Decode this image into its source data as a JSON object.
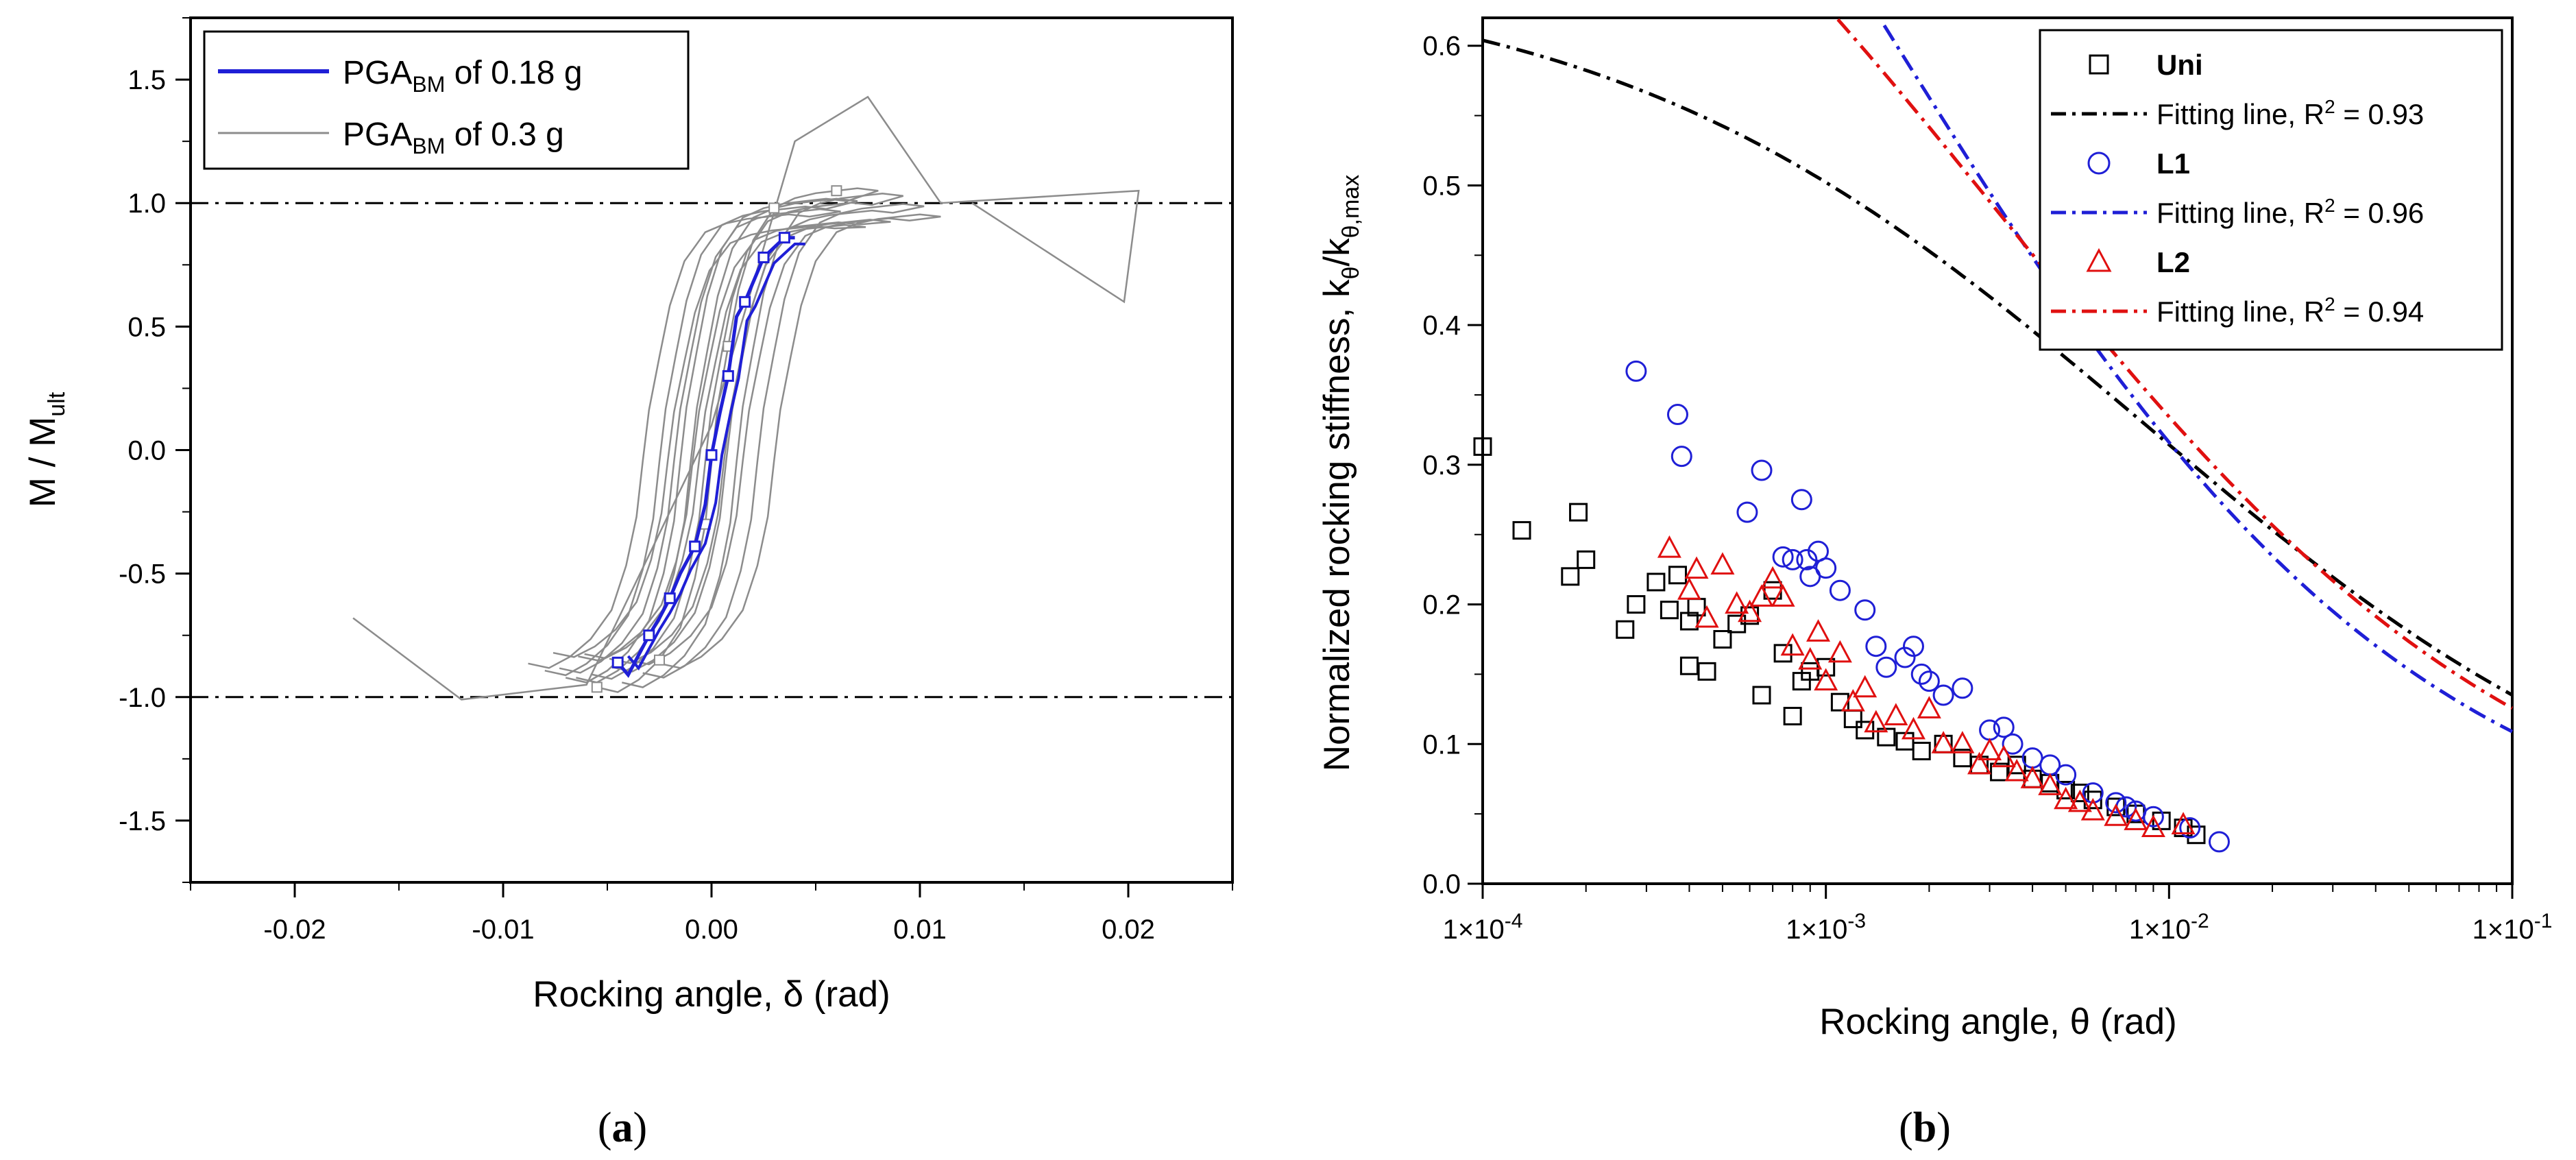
{
  "chart_data": [
    {
      "panel": "a",
      "type": "line",
      "caption_letter": "a",
      "xlabel": "Rocking angle, δ (rad)",
      "ylabel_main": "M / M",
      "ylabel_sub": "ult",
      "xlim": [
        -0.025,
        0.025
      ],
      "ylim": [
        -1.75,
        1.75
      ],
      "xticks": [
        -0.02,
        -0.01,
        0.0,
        0.01,
        0.02
      ],
      "xtick_labels": [
        "-0.02",
        "-0.01",
        "0.00",
        "0.01",
        "0.02"
      ],
      "yticks": [
        1.5,
        1.0,
        0.5,
        0.0,
        -0.5,
        -1.0,
        -1.5
      ],
      "ytick_labels": [
        "1.5",
        "1.0",
        "0.5",
        "0.0",
        "-0.5",
        "-1.0",
        "-1.5"
      ],
      "reference_lines": [
        1.0,
        -1.0
      ],
      "legend": [
        {
          "pre": "PGA",
          "sub": "BM",
          "post": " of 0.18 g",
          "color": "#1f1fd6"
        },
        {
          "pre": "PGA",
          "sub": "BM",
          "post": " of 0.3 g",
          "color": "#8c8c8c"
        }
      ],
      "series": [
        {
          "name": "PGA_BM of 0.18 g",
          "color": "#1f1fd6",
          "x": [
            -0.0045,
            -0.004,
            -0.003,
            -0.0025,
            -0.002,
            -0.0015,
            -0.0008,
            -0.0003,
            0.0,
            0.0004,
            0.0008,
            0.0012,
            0.0016,
            0.002,
            0.0025,
            0.003,
            0.0035,
            0.004
          ],
          "y": [
            -0.86,
            -0.91,
            -0.75,
            -0.68,
            -0.6,
            -0.5,
            -0.39,
            -0.22,
            -0.02,
            0.15,
            0.3,
            0.54,
            0.6,
            0.68,
            0.78,
            0.82,
            0.86,
            0.86
          ]
        },
        {
          "name": "PGA_BM of 0.3 g",
          "color": "#8c8c8c",
          "x": [
            -0.0055,
            -0.0045,
            -0.0035,
            -0.0025,
            -0.0015,
            -0.0008,
            -0.0003,
            0.0,
            0.0003,
            0.0008,
            0.0013,
            0.002,
            0.003,
            0.004,
            0.005,
            0.006,
            0.007,
            0.008
          ],
          "y": [
            -0.96,
            -0.98,
            -0.93,
            -0.85,
            -0.72,
            -0.52,
            -0.3,
            -0.05,
            0.18,
            0.42,
            0.65,
            0.85,
            0.98,
            1.02,
            1.04,
            1.05,
            1.06,
            1.05
          ]
        }
      ]
    },
    {
      "panel": "b",
      "type": "scatter",
      "caption_letter": "b",
      "xscale": "log",
      "xlabel": "Rocking angle, θ (rad)",
      "ylabel_main": "Normalized rocking stiffness, k",
      "ylabel_sub1": "θ",
      "ylabel_mid": "/k",
      "ylabel_sub2": "θ,max",
      "xlim": [
        0.0001,
        0.1
      ],
      "ylim": [
        0.0,
        0.62
      ],
      "xticks": [
        0.0001,
        0.001,
        0.01,
        0.1
      ],
      "xtick_labels": [
        {
          "base": "1×10",
          "exp": "-4"
        },
        {
          "base": "1×10",
          "exp": "-3"
        },
        {
          "base": "1×10",
          "exp": "-2"
        },
        {
          "base": "1×10",
          "exp": "-1"
        }
      ],
      "yticks": [
        0.0,
        0.1,
        0.2,
        0.3,
        0.4,
        0.5,
        0.6
      ],
      "ytick_labels": [
        "0.0",
        "0.1",
        "0.2",
        "0.3",
        "0.4",
        "0.5",
        "0.6"
      ],
      "legend": [
        {
          "label": "Uni",
          "kind": "square",
          "color": "#000000"
        },
        {
          "label": "Fitting line, R",
          "sup": "2",
          "tail": " = 0.93",
          "kind": "dashdot",
          "color": "#000000"
        },
        {
          "label": "L1",
          "kind": "circle",
          "color": "#1f1fd6"
        },
        {
          "label": "Fitting line, R",
          "sup": "2",
          "tail": " = 0.96",
          "kind": "dashdot",
          "color": "#1f1fd6"
        },
        {
          "label": "L2",
          "kind": "triangle",
          "color": "#e01010"
        },
        {
          "label": "Fitting line, R",
          "sup": "2",
          "tail": " = 0.94",
          "kind": "dashdot",
          "color": "#e01010"
        }
      ],
      "series": [
        {
          "name": "Uni",
          "marker": "square",
          "color": "#000000",
          "x": [
            0.0001,
            0.00013,
            0.00018,
            0.00019,
            0.0002,
            0.00026,
            0.00028,
            0.00032,
            0.00035,
            0.00037,
            0.0004,
            0.0004,
            0.00042,
            0.00045,
            0.0005,
            0.00055,
            0.0006,
            0.00065,
            0.0007,
            0.00075,
            0.0008,
            0.00085,
            0.0009,
            0.001,
            0.0011,
            0.0012,
            0.0013,
            0.0015,
            0.0017,
            0.0019,
            0.0022,
            0.0025,
            0.0028,
            0.0032,
            0.0036,
            0.004,
            0.0045,
            0.005,
            0.0055,
            0.006,
            0.007,
            0.008,
            0.0095,
            0.011,
            0.012
          ],
          "y": [
            0.313,
            0.253,
            0.22,
            0.266,
            0.232,
            0.182,
            0.2,
            0.216,
            0.196,
            0.221,
            0.156,
            0.188,
            0.198,
            0.152,
            0.175,
            0.186,
            0.192,
            0.135,
            0.21,
            0.165,
            0.12,
            0.145,
            0.152,
            0.155,
            0.13,
            0.118,
            0.11,
            0.105,
            0.102,
            0.095,
            0.1,
            0.09,
            0.085,
            0.08,
            0.085,
            0.075,
            0.072,
            0.067,
            0.065,
            0.06,
            0.055,
            0.05,
            0.045,
            0.04,
            0.035
          ]
        },
        {
          "name": "L1",
          "marker": "circle",
          "color": "#1f1fd6",
          "x": [
            0.00028,
            0.00037,
            0.00038,
            0.00059,
            0.00065,
            0.00075,
            0.0008,
            0.00085,
            0.00088,
            0.0009,
            0.00095,
            0.001,
            0.0011,
            0.0013,
            0.0014,
            0.0015,
            0.0017,
            0.0018,
            0.0019,
            0.002,
            0.0022,
            0.0025,
            0.003,
            0.0033,
            0.0035,
            0.004,
            0.0045,
            0.005,
            0.006,
            0.007,
            0.0075,
            0.008,
            0.009,
            0.0115,
            0.014
          ],
          "y": [
            0.367,
            0.336,
            0.306,
            0.266,
            0.296,
            0.234,
            0.232,
            0.275,
            0.232,
            0.22,
            0.238,
            0.226,
            0.21,
            0.196,
            0.17,
            0.155,
            0.162,
            0.17,
            0.15,
            0.145,
            0.135,
            0.14,
            0.11,
            0.112,
            0.1,
            0.09,
            0.085,
            0.078,
            0.065,
            0.058,
            0.055,
            0.052,
            0.048,
            0.04,
            0.03
          ]
        },
        {
          "name": "L2",
          "marker": "triangle",
          "color": "#e01010",
          "x": [
            0.00035,
            0.0004,
            0.00042,
            0.00045,
            0.0005,
            0.00055,
            0.0006,
            0.00065,
            0.0007,
            0.00075,
            0.0008,
            0.0009,
            0.00095,
            0.001,
            0.0011,
            0.0012,
            0.0013,
            0.0014,
            0.0016,
            0.0018,
            0.002,
            0.0022,
            0.0025,
            0.0028,
            0.003,
            0.0033,
            0.0036,
            0.004,
            0.0045,
            0.005,
            0.0055,
            0.006,
            0.007,
            0.008,
            0.009,
            0.011
          ],
          "y": [
            0.24,
            0.21,
            0.225,
            0.19,
            0.228,
            0.2,
            0.194,
            0.205,
            0.218,
            0.205,
            0.17,
            0.16,
            0.18,
            0.145,
            0.165,
            0.13,
            0.14,
            0.115,
            0.12,
            0.11,
            0.125,
            0.1,
            0.1,
            0.085,
            0.095,
            0.09,
            0.08,
            0.075,
            0.07,
            0.06,
            0.058,
            0.052,
            0.048,
            0.045,
            0.04,
            0.042
          ]
        },
        {
          "name": "Fit Uni",
          "fit": {
            "a": 0.0086,
            "b": 0.41
          },
          "color": "#000000"
        },
        {
          "name": "Fit L1",
          "fit": {
            "a": 0.0014,
            "b": 0.78
          },
          "color": "#1f1fd6"
        },
        {
          "name": "Fit L2",
          "fit": {
            "a": 0.0032,
            "b": 0.6
          },
          "color": "#e01010"
        }
      ]
    }
  ]
}
